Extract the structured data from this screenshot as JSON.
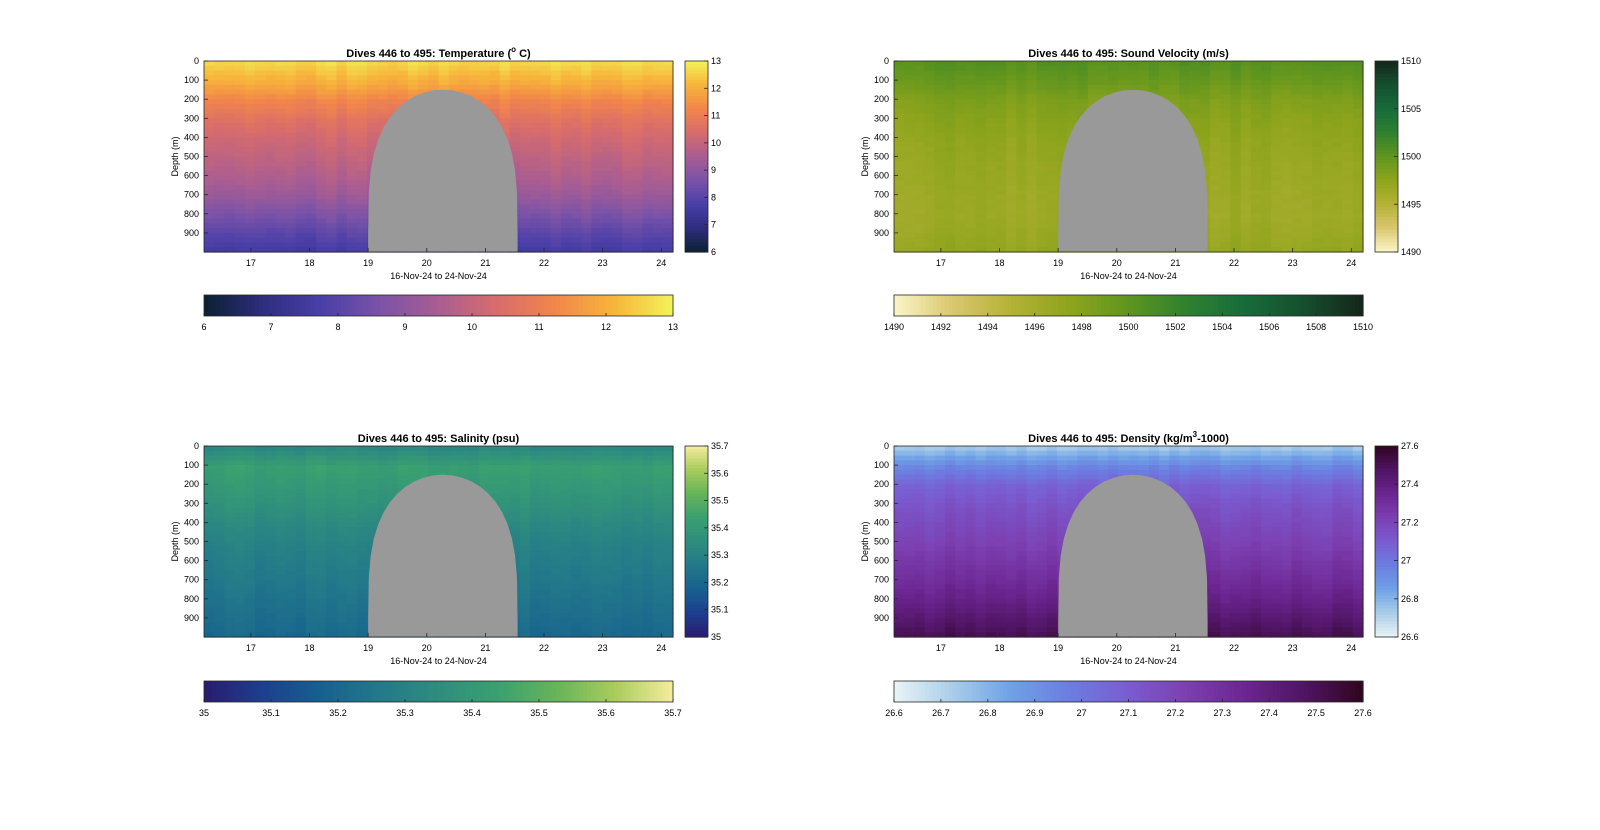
{
  "figure": {
    "background": "#ffffff"
  },
  "chart_data": [
    {
      "type": "heatmap",
      "title_main": "Dives 446 to 495: Temperature (",
      "title_sup": "o",
      "title_rest": " C)",
      "xlabel": "16-Nov-24 to 24-Nov-24",
      "ylabel": "Depth (m)",
      "x_ticks": [
        "17",
        "18",
        "19",
        "20",
        "21",
        "22",
        "23",
        "24"
      ],
      "y_ticks": [
        "0",
        "100",
        "200",
        "300",
        "400",
        "500",
        "600",
        "700",
        "800",
        "900"
      ],
      "ylim": [
        1000,
        0
      ],
      "xlim": [
        16.2,
        24.2
      ],
      "colorbar_ticks": [
        "13",
        "12",
        "11",
        "10",
        "9",
        "8",
        "7",
        "6"
      ],
      "hcolorbar_ticks": [
        "6",
        "7",
        "8",
        "9",
        "10",
        "11",
        "12",
        "13"
      ],
      "value_range": [
        6,
        13
      ],
      "colormap": [
        "#0a2130",
        "#2e2d7e",
        "#4a3fa8",
        "#7a53a8",
        "#a95d92",
        "#d86c6c",
        "#f2864a",
        "#f7b53b",
        "#f2f35a"
      ],
      "profile": [
        12.6,
        12.0,
        11.2,
        10.6,
        10.2,
        9.9,
        9.6,
        9.2,
        8.6,
        8.0,
        7.5
      ],
      "gap_color": "#999999",
      "gap_x": [
        19.0,
        21.55
      ],
      "gap_top_depth": 150
    },
    {
      "type": "heatmap",
      "title_main": "Dives 446 to 495: Sound Velocity (m/s)",
      "title_sup": "",
      "title_rest": "",
      "xlabel": "16-Nov-24 to 24-Nov-24",
      "ylabel": "Depth (m)",
      "x_ticks": [
        "17",
        "18",
        "19",
        "20",
        "21",
        "22",
        "23",
        "24"
      ],
      "y_ticks": [
        "0",
        "100",
        "200",
        "300",
        "400",
        "500",
        "600",
        "700",
        "800",
        "900"
      ],
      "ylim": [
        1000,
        0
      ],
      "xlim": [
        16.2,
        24.2
      ],
      "colorbar_ticks": [
        "1510",
        "1505",
        "1500",
        "1495",
        "1490"
      ],
      "hcolorbar_ticks": [
        "1490",
        "1492",
        "1494",
        "1496",
        "1498",
        "1500",
        "1502",
        "1504",
        "1506",
        "1508",
        "1510"
      ],
      "value_range": [
        1490,
        1510
      ],
      "colormap": [
        "#fbf6c8",
        "#d9c76e",
        "#b4b236",
        "#8ea41c",
        "#5f951e",
        "#2f8030",
        "#176b3a",
        "#154f2e",
        "#15261a"
      ],
      "profile": [
        1500.5,
        1499.5,
        1498.3,
        1497.7,
        1497.3,
        1497.0,
        1496.8,
        1496.6,
        1496.5,
        1496.8,
        1497.2
      ],
      "gap_color": "#999999",
      "gap_x": [
        19.0,
        21.55
      ],
      "gap_top_depth": 150
    },
    {
      "type": "heatmap",
      "title_main": "Dives 446 to 495: Salinity (psu)",
      "title_sup": "",
      "title_rest": "",
      "xlabel": "16-Nov-24 to 24-Nov-24",
      "ylabel": "Depth (m)",
      "x_ticks": [
        "17",
        "18",
        "19",
        "20",
        "21",
        "22",
        "23",
        "24"
      ],
      "y_ticks": [
        "0",
        "100",
        "200",
        "300",
        "400",
        "500",
        "600",
        "700",
        "800",
        "900"
      ],
      "ylim": [
        1000,
        0
      ],
      "xlim": [
        16.2,
        24.2
      ],
      "colorbar_ticks": [
        "35.7",
        "35.6",
        "35.5",
        "35.4",
        "35.3",
        "35.2",
        "35.1",
        "35"
      ],
      "hcolorbar_ticks": [
        "35",
        "35.1",
        "35.2",
        "35.3",
        "35.4",
        "35.5",
        "35.6",
        "35.7"
      ],
      "value_range": [
        35.0,
        35.7
      ],
      "colormap": [
        "#2a1b6e",
        "#1d3f8f",
        "#17608f",
        "#23798a",
        "#2e8d7e",
        "#3aa070",
        "#66b45a",
        "#a8cc5c",
        "#f5ec9e"
      ],
      "profile": [
        35.33,
        35.43,
        35.4,
        35.37,
        35.33,
        35.3,
        35.28,
        35.26,
        35.24,
        35.22,
        35.2
      ],
      "gap_color": "#999999",
      "gap_x": [
        19.0,
        21.55
      ],
      "gap_top_depth": 150
    },
    {
      "type": "heatmap",
      "title_main": "Dives 446 to 495: Density (kg/m",
      "title_sup": "3",
      "title_rest": "-1000)",
      "xlabel": "16-Nov-24 to 24-Nov-24",
      "ylabel": "Depth (m)",
      "x_ticks": [
        "17",
        "18",
        "19",
        "20",
        "21",
        "22",
        "23",
        "24"
      ],
      "y_ticks": [
        "0",
        "100",
        "200",
        "300",
        "400",
        "500",
        "600",
        "700",
        "800",
        "900"
      ],
      "ylim": [
        1000,
        0
      ],
      "xlim": [
        16.2,
        24.2
      ],
      "colorbar_ticks": [
        "27.6",
        "27.4",
        "27.2",
        "27",
        "26.8",
        "26.6"
      ],
      "hcolorbar_ticks": [
        "26.6",
        "26.7",
        "26.8",
        "26.9",
        "27",
        "27.1",
        "27.2",
        "27.3",
        "27.4",
        "27.5",
        "27.6"
      ],
      "value_range": [
        26.6,
        27.6
      ],
      "colormap": [
        "#eaf4f6",
        "#a9cde9",
        "#6fa1e6",
        "#6c7de0",
        "#7a5cd0",
        "#7c3fb0",
        "#6b2590",
        "#4f1463",
        "#30051f"
      ],
      "profile": [
        26.75,
        26.95,
        27.08,
        27.14,
        27.18,
        27.22,
        27.27,
        27.32,
        27.38,
        27.45,
        27.52
      ],
      "gap_color": "#999999",
      "gap_x": [
        19.0,
        21.55
      ],
      "gap_top_depth": 150
    }
  ]
}
